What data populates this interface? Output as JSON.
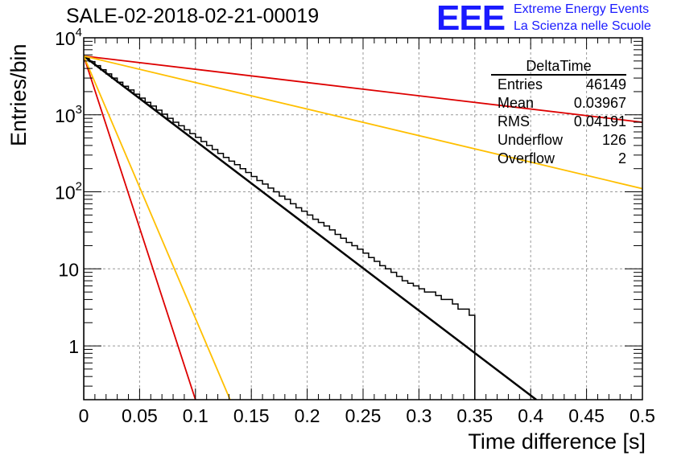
{
  "header": {
    "title": "SALE-02-2018-02-21-00019",
    "logo_text": "EEE",
    "logo_line1": "Extreme Energy Events",
    "logo_line2": "La Scienza nelle Scuole",
    "logo_color": "#1a1aff"
  },
  "stats_box": {
    "name": "DeltaTime",
    "rows": [
      {
        "label": "Entries",
        "value": "46149"
      },
      {
        "label": "Mean",
        "value": "0.03967"
      },
      {
        "label": "RMS",
        "value": "0.04191"
      },
      {
        "label": "Underflow",
        "value": "126"
      },
      {
        "label": "Overflow",
        "value": "2"
      }
    ]
  },
  "chart_data": {
    "type": "line",
    "title": "SALE-02-2018-02-21-00019",
    "xlabel": "Time difference [s]",
    "ylabel": "Entries/bin",
    "xlim": [
      0,
      0.5
    ],
    "ylim": [
      0.2,
      10000
    ],
    "y_scale": "log",
    "grid": true,
    "x_ticks": [
      "0",
      "0.05",
      "0.1",
      "0.15",
      "0.2",
      "0.25",
      "0.3",
      "0.35",
      "0.4",
      "0.45",
      "0.5"
    ],
    "y_ticks": [
      {
        "value": 1,
        "label": "1"
      },
      {
        "value": 10,
        "label": "10"
      },
      {
        "value": 100,
        "label": "10",
        "exp": "2"
      },
      {
        "value": 1000,
        "label": "10",
        "exp": "3"
      },
      {
        "value": 10000,
        "label": "10",
        "exp": "4"
      }
    ],
    "histogram": {
      "bin_width": 0.005,
      "color": "#000000",
      "values": [
        5500,
        4900,
        4350,
        3850,
        3400,
        3000,
        2650,
        2350,
        2100,
        1850,
        1650,
        1450,
        1300,
        1150,
        1020,
        900,
        800,
        720,
        640,
        570,
        510,
        450,
        400,
        355,
        315,
        280,
        250,
        225,
        200,
        178,
        158,
        140,
        126,
        112,
        100,
        88,
        80,
        70,
        62,
        56,
        50,
        44,
        40,
        36,
        32,
        28,
        25,
        22,
        20,
        18,
        16,
        14,
        12.5,
        11,
        10,
        9,
        8,
        7,
        6.5,
        6,
        5.5,
        5,
        5,
        4.5,
        4,
        4,
        3.5,
        3,
        3,
        2.5
      ]
    },
    "series": [
      {
        "color": "#000000",
        "points": [
          [
            0,
            5800
          ],
          [
            0.405,
            0.2
          ]
        ]
      },
      {
        "color": "#dd0000",
        "points": [
          [
            0,
            5800
          ],
          [
            0.1,
            0.2
          ]
        ]
      },
      {
        "color": "#ffbf00",
        "points": [
          [
            0,
            5800
          ],
          [
            0.131,
            0.2
          ]
        ]
      },
      {
        "color": "#dd0000",
        "points": [
          [
            0,
            5800
          ],
          [
            0.5,
            800
          ]
        ]
      },
      {
        "color": "#ffbf00",
        "points": [
          [
            0,
            5800
          ],
          [
            0.5,
            110
          ]
        ]
      }
    ]
  }
}
